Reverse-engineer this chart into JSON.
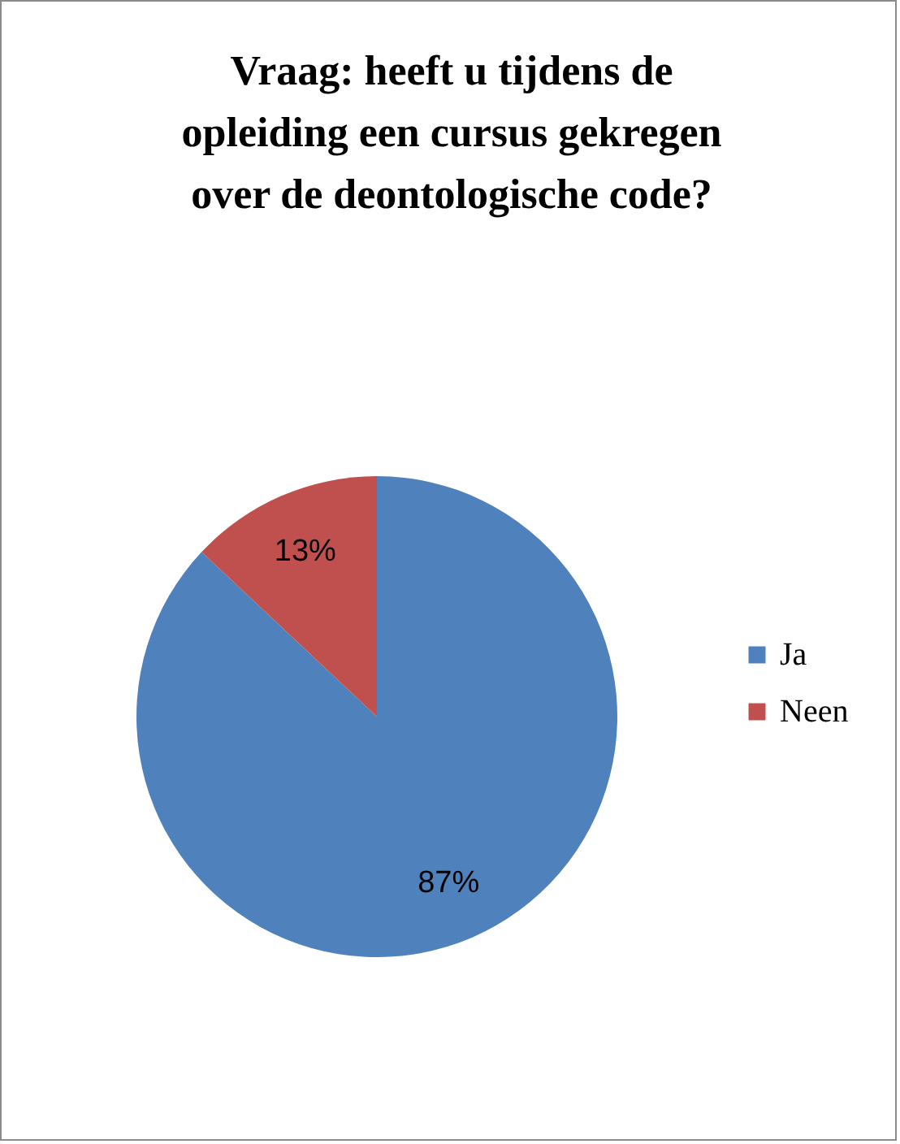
{
  "chart_data": {
    "type": "pie",
    "title": "Vraag: heeft u tijdens de opleiding een cursus gekregen over de deontologische code?",
    "categories": [
      "Ja",
      "Neen"
    ],
    "values": [
      87,
      13
    ],
    "colors": [
      "#4f81bd",
      "#c0504d"
    ],
    "value_labels": [
      "87%",
      "13%"
    ],
    "legend": "right"
  }
}
